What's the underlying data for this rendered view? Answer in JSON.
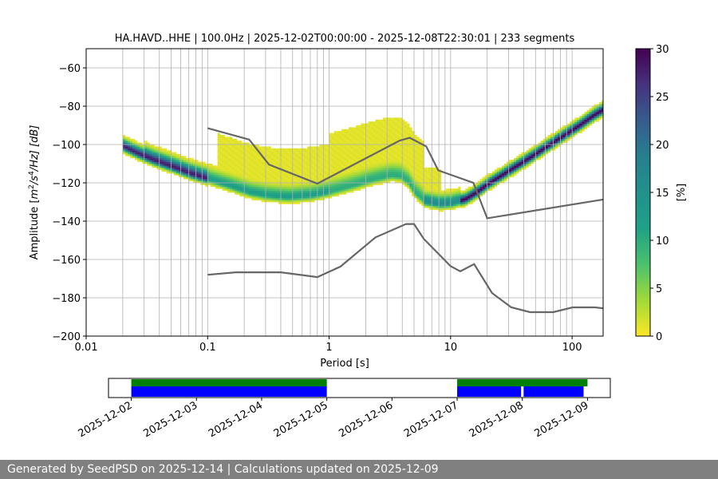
{
  "chart_data": [
    {
      "type": "heatmap",
      "title": "HA.HAVD..HHE | 100.0Hz | 2025-12-02T00:00:00 - 2025-12-08T22:30:01 | 233 segments",
      "xlabel": "Period [s]",
      "ylabel_parts": {
        "prefix": "Amplitude [",
        "m": "m",
        "exp1": "2",
        "mid": "/s",
        "exp2": "4",
        "suffix": "/Hz] [dB]"
      },
      "x_scale": "log",
      "xlim": [
        0.01,
        180
      ],
      "ylim": [
        -200,
        -50
      ],
      "x_ticks": [
        {
          "value": 0.01,
          "label": "0.01"
        },
        {
          "value": 0.1,
          "label": "0.1"
        },
        {
          "value": 1,
          "label": "1"
        },
        {
          "value": 10,
          "label": "10"
        },
        {
          "value": 100,
          "label": "100"
        }
      ],
      "y_ticks": [
        {
          "value": -60,
          "label": "−60"
        },
        {
          "value": -80,
          "label": "−80"
        },
        {
          "value": -100,
          "label": "−100"
        },
        {
          "value": -120,
          "label": "−120"
        },
        {
          "value": -140,
          "label": "−140"
        },
        {
          "value": -160,
          "label": "−160"
        },
        {
          "value": -180,
          "label": "−180"
        },
        {
          "value": -200,
          "label": "−200"
        }
      ],
      "grid": true,
      "colormap": "viridis_r",
      "colorbar": {
        "label": "[%]",
        "range": [
          0,
          30
        ],
        "ticks": [
          {
            "value": 0,
            "label": "0"
          },
          {
            "value": 5,
            "label": "5"
          },
          {
            "value": 10,
            "label": "10"
          },
          {
            "value": 15,
            "label": "15"
          },
          {
            "value": 20,
            "label": "20"
          },
          {
            "value": 25,
            "label": "25"
          },
          {
            "value": 30,
            "label": "30"
          }
        ]
      },
      "series": [
        {
          "kind": "reference_line",
          "color": "#666666",
          "x": [
            0.1,
            0.22,
            0.32,
            0.8,
            3.8,
            4.6,
            6.3,
            7.9,
            15.4,
            20,
            180
          ],
          "y": [
            -91.5,
            -97.4,
            -110.5,
            -120.4,
            -98.0,
            -96.5,
            -101.0,
            -113.5,
            -120.0,
            -138.5,
            -128.7
          ]
        },
        {
          "kind": "reference_line",
          "color": "#666666",
          "x": [
            0.1,
            0.17,
            0.4,
            0.8,
            1.24,
            2.4,
            4.3,
            5.0,
            6.0,
            10,
            12,
            15.6,
            21.9,
            31.6,
            45,
            70,
            101,
            154,
            180
          ],
          "y": [
            -168,
            -166.7,
            -166.7,
            -169.2,
            -163.7,
            -148.5,
            -141.5,
            -141.5,
            -149.2,
            -163.5,
            -166.2,
            -162.4,
            -177.5,
            -185.0,
            -187.5,
            -187.5,
            -185.0,
            -185.0,
            -185.5
          ]
        }
      ],
      "mode_curve": {
        "x": [
          0.02,
          0.025,
          0.035,
          0.05,
          0.07,
          0.1,
          0.15,
          0.22,
          0.3,
          0.45,
          0.7,
          1.0,
          1.5,
          2.3,
          3.2,
          3.8,
          4.4,
          5.0,
          6.0,
          8.0,
          10,
          13,
          16,
          20,
          30,
          45,
          70,
          110,
          150,
          180
        ],
        "y": [
          -101.5,
          -104.5,
          -108.5,
          -112,
          -115.5,
          -118.5,
          -122,
          -125.5,
          -127,
          -128,
          -127,
          -125,
          -122,
          -118.5,
          -116.5,
          -117,
          -120,
          -125.5,
          -130,
          -131.5,
          -131,
          -129,
          -125.5,
          -121,
          -114,
          -107,
          -99,
          -91,
          -85,
          -82
        ]
      },
      "highlight_intervals": []
    },
    {
      "type": "timeline",
      "x_ticks": [
        "2025-12-02",
        "2025-12-03",
        "2025-12-04",
        "2025-12-05",
        "2025-12-06",
        "2025-12-07",
        "2025-12-08",
        "2025-12-09"
      ],
      "xlim_days": [
        -0.35,
        7.35
      ],
      "colors": {
        "available": "#008000",
        "processed": "#0000ff"
      },
      "available_intervals": [
        [
          0.0,
          3.0
        ],
        [
          5.0,
          7.0
        ]
      ],
      "processed_intervals": [
        [
          0.0,
          3.0
        ],
        [
          5.0,
          5.98
        ],
        [
          6.02,
          6.94
        ]
      ]
    }
  ],
  "footer": {
    "text": "Generated by SeedPSD on 2025-12-14 | Calculations updated on 2025-12-09"
  }
}
